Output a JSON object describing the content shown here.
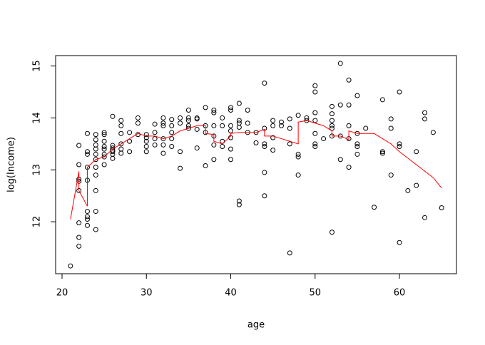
{
  "chart_data": {
    "type": "scatter",
    "x_label": "age",
    "y_label": "log(Income)",
    "xlim": [
      19.24,
      66.76
    ],
    "ylim": [
      11.0,
      15.2
    ],
    "xticks": [
      20,
      30,
      40,
      50,
      60
    ],
    "yticks": [
      12,
      13,
      14,
      15
    ],
    "points": {
      "color": "#000000",
      "x": [
        21,
        22,
        22,
        22,
        22,
        22,
        22,
        22,
        22,
        23,
        23,
        23,
        23,
        23,
        23,
        23,
        23,
        23,
        24,
        24,
        24,
        24,
        24,
        24,
        24,
        24,
        24,
        24,
        24,
        25,
        25,
        25,
        25,
        25,
        25,
        25,
        25,
        26,
        26,
        26,
        26,
        26,
        26,
        26,
        27,
        27,
        27,
        27,
        27,
        27,
        28,
        28,
        28,
        29,
        29,
        29,
        30,
        30,
        30,
        30,
        30,
        31,
        31,
        31,
        31,
        32,
        32,
        32,
        32,
        32,
        32,
        33,
        33,
        33,
        33,
        33,
        34,
        34,
        34,
        34,
        35,
        35,
        35,
        35,
        35,
        36,
        36,
        36,
        36,
        37,
        37,
        37,
        37,
        38,
        38,
        38,
        38,
        38,
        38,
        39,
        39,
        39,
        39,
        40,
        40,
        40,
        40,
        40,
        40,
        40,
        41,
        41,
        41,
        41,
        41,
        41,
        42,
        42,
        42,
        43,
        43,
        44,
        44,
        44,
        44,
        44,
        44,
        45,
        45,
        45,
        45,
        46,
        46,
        47,
        47,
        47,
        47,
        48,
        48,
        48,
        48,
        49,
        49,
        50,
        50,
        50,
        50,
        50,
        50,
        50,
        51,
        52,
        52,
        52,
        52,
        52,
        52,
        52,
        53,
        53,
        53,
        53,
        54,
        54,
        54,
        54,
        54,
        55,
        55,
        55,
        55,
        55,
        56,
        57,
        58,
        58,
        58,
        59,
        59,
        59,
        60,
        60,
        60,
        60,
        61,
        62,
        62,
        63,
        63,
        63,
        64,
        65
      ],
      "y": [
        11.15,
        13.47,
        13.1,
        12.82,
        12.78,
        12.6,
        11.98,
        11.7,
        11.53,
        13.7,
        13.35,
        13.3,
        13.05,
        12.8,
        12.2,
        12.1,
        12.05,
        11.93,
        13.68,
        13.58,
        13.48,
        13.4,
        13.3,
        13.2,
        13.05,
        12.9,
        12.6,
        12.2,
        11.85,
        13.72,
        13.68,
        13.55,
        13.45,
        13.4,
        13.3,
        13.25,
        13.1,
        14.03,
        13.47,
        13.42,
        13.38,
        13.35,
        13.3,
        13.22,
        13.95,
        13.85,
        13.7,
        13.5,
        13.4,
        13.32,
        13.72,
        13.55,
        13.35,
        14.0,
        13.9,
        13.68,
        13.68,
        13.62,
        13.55,
        13.45,
        13.35,
        13.88,
        13.72,
        13.6,
        13.48,
        14.0,
        13.9,
        13.85,
        13.6,
        13.48,
        13.32,
        13.97,
        13.85,
        13.72,
        13.6,
        13.45,
        14.0,
        13.9,
        13.35,
        13.03,
        14.15,
        14.0,
        13.95,
        13.85,
        13.8,
        14.0,
        13.98,
        13.78,
        13.42,
        14.2,
        13.85,
        13.72,
        13.08,
        14.15,
        14.1,
        13.85,
        13.65,
        13.48,
        13.2,
        14.0,
        13.85,
        13.55,
        13.45,
        14.2,
        14.15,
        13.85,
        13.75,
        13.62,
        13.4,
        13.2,
        14.28,
        13.95,
        13.9,
        13.82,
        12.4,
        12.33,
        14.15,
        13.9,
        13.72,
        13.72,
        13.52,
        14.67,
        13.8,
        13.5,
        13.45,
        12.95,
        12.5,
        13.95,
        13.85,
        13.62,
        13.38,
        13.92,
        13.85,
        13.98,
        13.8,
        13.5,
        11.4,
        14.05,
        13.3,
        13.25,
        12.9,
        14.0,
        13.95,
        14.62,
        14.5,
        14.1,
        13.95,
        13.7,
        13.5,
        13.45,
        13.6,
        14.22,
        14.08,
        13.95,
        13.85,
        13.8,
        13.65,
        11.8,
        15.05,
        14.25,
        13.65,
        13.2,
        14.73,
        14.25,
        13.85,
        13.6,
        13.05,
        14.43,
        13.7,
        13.5,
        13.45,
        13.3,
        13.8,
        12.28,
        14.35,
        13.35,
        13.32,
        13.98,
        13.8,
        12.9,
        14.5,
        13.5,
        13.45,
        11.6,
        12.6,
        13.35,
        12.7,
        14.1,
        13.98,
        12.08,
        13.72,
        12.27
      ]
    },
    "line": {
      "color": "#ff0000",
      "x": [
        21,
        22,
        22,
        23,
        23,
        24,
        25,
        26,
        27,
        28,
        29,
        30,
        31,
        32,
        33,
        34,
        35,
        36,
        37,
        37,
        38,
        38,
        39,
        40,
        40,
        41,
        42,
        43,
        44,
        44,
        45,
        46,
        47,
        48,
        48,
        49,
        50,
        51,
        52,
        52,
        53,
        54,
        54,
        55,
        56,
        57,
        58,
        59,
        60,
        62,
        64,
        65
      ],
      "y": [
        12.05,
        12.97,
        12.6,
        12.3,
        13.05,
        13.2,
        13.25,
        13.4,
        13.5,
        13.6,
        13.7,
        13.65,
        13.65,
        13.6,
        13.65,
        13.75,
        13.8,
        13.85,
        13.85,
        13.7,
        13.68,
        13.55,
        13.5,
        13.65,
        13.7,
        13.72,
        13.72,
        13.72,
        13.78,
        13.65,
        13.65,
        13.6,
        13.55,
        13.5,
        13.92,
        13.95,
        13.9,
        13.85,
        13.75,
        13.65,
        13.65,
        13.58,
        13.75,
        13.7,
        13.7,
        13.7,
        13.6,
        13.5,
        13.35,
        13.1,
        12.85,
        12.65
      ]
    }
  }
}
